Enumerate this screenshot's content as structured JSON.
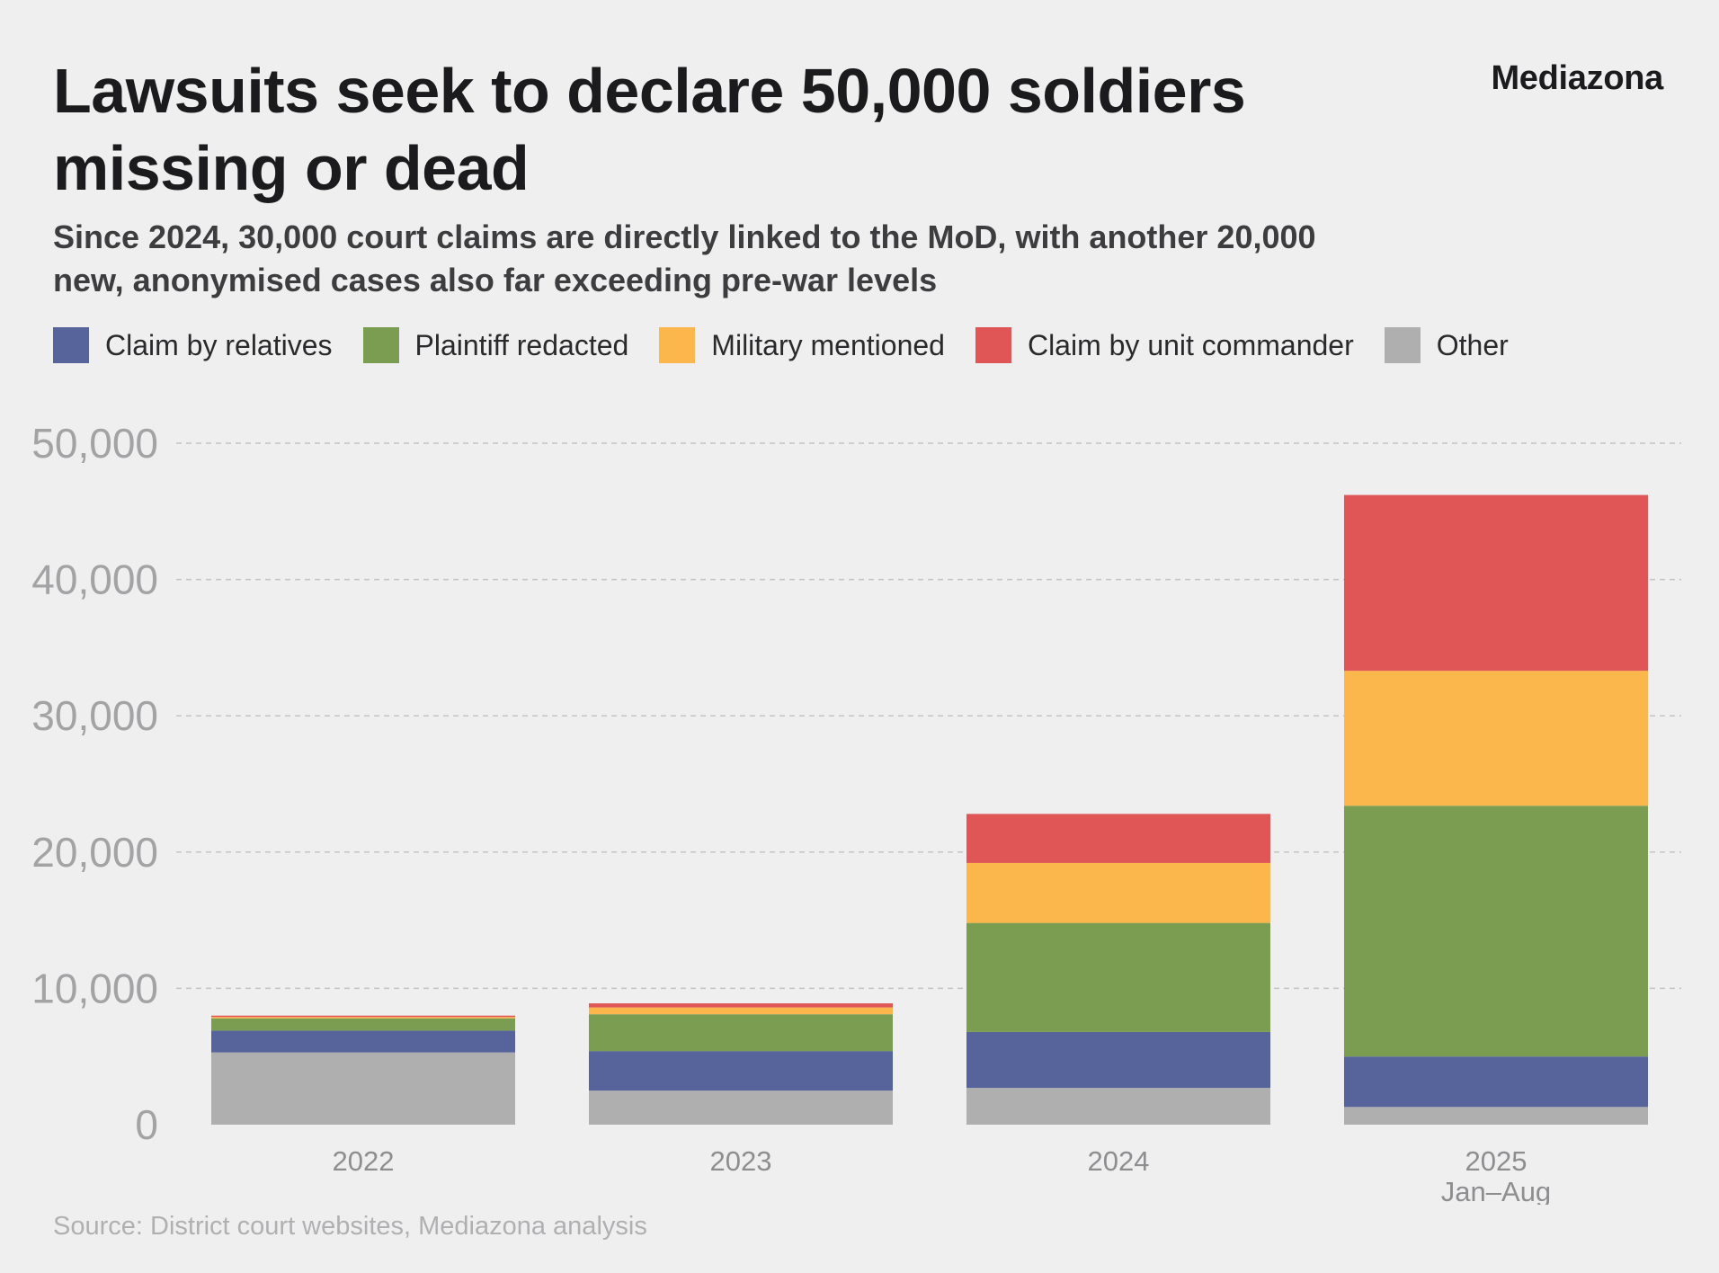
{
  "header": {
    "title": "Lawsuits seek to declare 50,000 soldiers missing or dead",
    "subtitle": "Since 2024, 30,000 court claims are directly linked to the MoD, with another 20,000 new, anonymised cases also far exceeding pre-war levels",
    "brand": "Mediazona"
  },
  "footer": {
    "source": "Source: District court websites, Mediazona analysis"
  },
  "chart_data": {
    "type": "bar",
    "stacked": true,
    "categories": [
      "2022",
      "2023",
      "2024",
      "2025"
    ],
    "category_sublabels": [
      "",
      "",
      "",
      "Jan–Aug"
    ],
    "series": [
      {
        "name": "Other",
        "color": "#afafaf",
        "values": [
          5300,
          2500,
          2700,
          1300
        ]
      },
      {
        "name": "Claim by relatives",
        "color": "#56649b",
        "values": [
          1600,
          2900,
          4100,
          3700
        ]
      },
      {
        "name": "Plaintiff redacted",
        "color": "#7a9d51",
        "values": [
          900,
          2700,
          8000,
          18400
        ]
      },
      {
        "name": "Military mentioned",
        "color": "#fcb74c",
        "values": [
          100,
          500,
          4400,
          9900
        ]
      },
      {
        "name": "Claim by unit commander",
        "color": "#e05555",
        "values": [
          100,
          300,
          3600,
          12900
        ]
      }
    ],
    "legend_order": [
      "Claim by relatives",
      "Plaintiff redacted",
      "Military mentioned",
      "Claim by unit commander",
      "Other"
    ],
    "y_ticks": [
      0,
      10000,
      20000,
      30000,
      40000,
      50000
    ],
    "y_tick_labels": [
      "0",
      "10,000",
      "20,000",
      "30,000",
      "40,000",
      "50,000"
    ],
    "ylim": [
      0,
      50000
    ],
    "grid": true,
    "legend_position": "top-left"
  }
}
